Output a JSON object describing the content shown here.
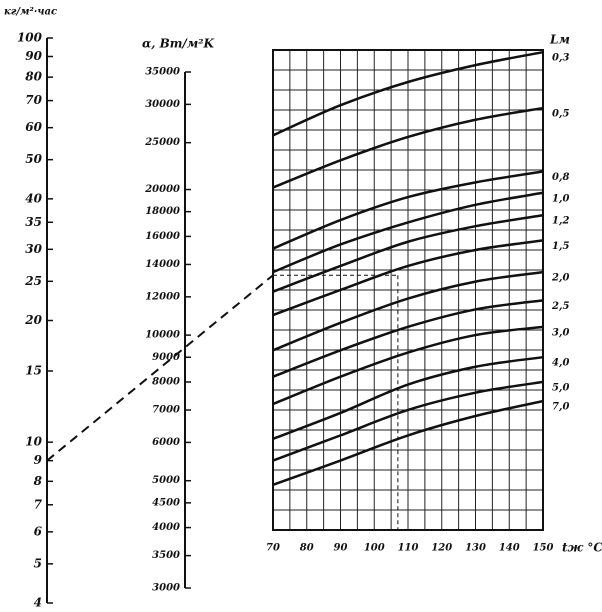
{
  "chart_data": [
    {
      "type": "scale",
      "title": "кг/м²·час",
      "log": true,
      "ylim": [
        4,
        100
      ],
      "yticks": [
        4,
        5,
        6,
        7,
        8,
        9,
        10,
        15,
        20,
        25,
        30,
        35,
        40,
        50,
        60,
        70,
        80,
        90,
        100
      ]
    },
    {
      "type": "scale",
      "title": "α, Вт/м²K",
      "log": true,
      "ylim": [
        3000,
        35000
      ],
      "yticks": [
        35000,
        30000,
        25000,
        20000,
        18000,
        16000,
        14000,
        12000,
        10000,
        9000,
        8000,
        7000,
        6000,
        5000,
        4500,
        4000,
        3500,
        3000
      ]
    },
    {
      "type": "line",
      "legend_title": "Lм",
      "xlabel": "tж °C",
      "log": true,
      "grid": true,
      "color": "#111111",
      "xlim": [
        70,
        150
      ],
      "xticks": [
        70,
        80,
        90,
        100,
        110,
        120,
        130,
        140,
        150
      ],
      "ylim": [
        3950,
        38900
      ],
      "x": [
        70,
        90,
        110,
        130,
        150
      ],
      "series": [
        {
          "name": "0,3",
          "values": [
            25900,
            29900,
            33400,
            36200,
            38500
          ]
        },
        {
          "name": "0,5",
          "values": [
            20200,
            23000,
            25700,
            27900,
            29500
          ]
        },
        {
          "name": "0,8",
          "values": [
            15100,
            17300,
            19300,
            20700,
            21800
          ]
        },
        {
          "name": "1,0",
          "values": [
            13500,
            15400,
            17100,
            18600,
            19700
          ]
        },
        {
          "name": "1,2",
          "values": [
            12300,
            13900,
            15600,
            16800,
            17700
          ]
        },
        {
          "name": "1,5",
          "values": [
            11000,
            12400,
            13900,
            15000,
            15700
          ]
        },
        {
          "name": "2,0",
          "values": [
            9300,
            10600,
            11900,
            12900,
            13500
          ]
        },
        {
          "name": "2,5",
          "values": [
            8200,
            9300,
            10400,
            11300,
            11800
          ]
        },
        {
          "name": "3,0",
          "values": [
            7200,
            8200,
            9200,
            10000,
            10400
          ]
        },
        {
          "name": "4,0",
          "values": [
            6100,
            6900,
            7900,
            8600,
            9000
          ]
        },
        {
          "name": "5,0",
          "values": [
            5500,
            6200,
            7000,
            7600,
            8000
          ]
        },
        {
          "name": "7,0",
          "values": [
            4900,
            5500,
            6200,
            6800,
            7300
          ]
        }
      ],
      "key_line": {
        "G": 9,
        "alpha": 13300,
        "t": 107
      }
    }
  ]
}
